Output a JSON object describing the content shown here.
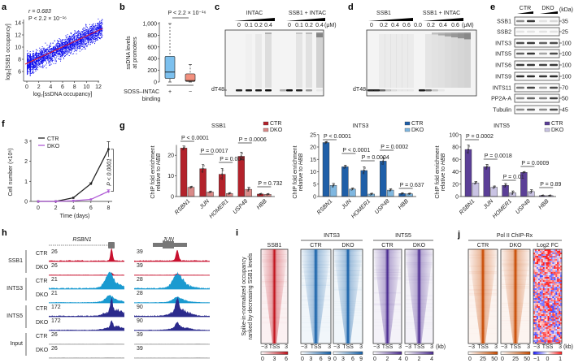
{
  "panel_labels": {
    "a": "a",
    "b": "b",
    "c": "c",
    "d": "d",
    "e": "e",
    "f": "f",
    "g": "g",
    "h": "h",
    "i": "i",
    "j": "j"
  },
  "panel_a": {
    "r": "r = 0.683",
    "p": "P < 2.2 × 10⁻¹⁶",
    "ylabel": "log₂[SSB1 occupancy]",
    "xlabel": "log₂[ssDNA occupancy]",
    "yticks": [
      6,
      8,
      10,
      12,
      14
    ],
    "xticks": [
      0,
      2,
      4,
      6,
      8,
      10,
      12
    ],
    "fit": {
      "intercept": 7.2,
      "slope": 0.46
    },
    "point_color": "#1010ee",
    "fit_color": "#e8202a"
  },
  "panel_b": {
    "p": "P < 2.2 × 10⁻¹⁶",
    "ylabel": [
      "ssDNA levels",
      "at promoters"
    ],
    "yticks": [
      0,
      200,
      400,
      600,
      800,
      1000
    ],
    "xlabel": [
      "SOSS–INTAC",
      "binding"
    ],
    "groups": [
      {
        "label": "+",
        "lo": 0,
        "q1": 60,
        "median": 170,
        "q3": 440,
        "hi": 1000,
        "color": "#7cc0ee"
      },
      {
        "label": "−",
        "lo": 0,
        "q1": 10,
        "median": 25,
        "q3": 140,
        "hi": 300,
        "color": "#f2907e"
      }
    ]
  },
  "panel_c": {
    "group1": "INTAC",
    "doses1": [
      "0",
      "0.1",
      "0.2",
      "0.4"
    ],
    "group2": "SSB1 + INTAC",
    "doses2": [
      "0",
      "0.1",
      "0.2",
      "0.4"
    ],
    "unit": "(μM)",
    "probe": "dT48"
  },
  "panel_d": {
    "group1": "SSB1",
    "doses1": [
      "0",
      "0.2",
      "0.4",
      "0.6"
    ],
    "group2": "SSB1 + INTAC",
    "doses2": [
      "0.0",
      "0.2",
      "0.4",
      "0.6"
    ],
    "unit": "(μM)",
    "probe": "dT48"
  },
  "panel_e": {
    "groups": [
      "CTR",
      "DKO"
    ],
    "unit": "(kDa)",
    "rows": [
      {
        "name": "SSB1",
        "kda": "35",
        "levels": [
          0.5,
          0.9,
          0.1,
          0.15
        ]
      },
      {
        "name": "SSB2",
        "kda": "25",
        "levels": [
          0.1,
          0.1,
          0.1,
          0.1
        ]
      },
      {
        "name": "INTS3",
        "kda": "100",
        "levels": [
          0.8,
          0.9,
          0.7,
          0.8
        ]
      },
      {
        "name": "INTS5",
        "kda": "100",
        "levels": [
          0.7,
          0.9,
          0.4,
          0.8
        ]
      },
      {
        "name": "INTS6",
        "kda": "100",
        "levels": [
          0.9,
          0.9,
          0.85,
          0.9
        ]
      },
      {
        "name": "INTS9",
        "kda": "100",
        "levels": [
          0.95,
          0.95,
          0.9,
          0.95
        ]
      },
      {
        "name": "INTS11",
        "kda": "70",
        "levels": [
          0.6,
          0.85,
          0.4,
          0.8
        ]
      },
      {
        "name": "PP2A-A",
        "kda": "50",
        "levels": [
          0.5,
          0.7,
          0.55,
          0.85
        ]
      },
      {
        "name": "Tubulin",
        "kda": "45",
        "levels": [
          0.5,
          0.7,
          0.5,
          0.8
        ]
      }
    ]
  },
  "chart_data": [
    {
      "id": "f",
      "type": "line",
      "xlabel": "Time (days)",
      "ylabel": "Cell number (×10⁶)",
      "x": [
        0,
        2,
        4,
        6,
        8
      ],
      "xticks": [
        0,
        2,
        4,
        6,
        8
      ],
      "yticks": [
        0,
        1,
        2,
        3
      ],
      "ylim": [
        0,
        3
      ],
      "series": [
        {
          "name": "CTR",
          "values": [
            0,
            0,
            0.18,
            0.88,
            2.6
          ],
          "err": [
            0,
            0,
            0.02,
            0.05,
            0.38
          ],
          "color": "#222222"
        },
        {
          "name": "DKO",
          "values": [
            0,
            0,
            0.03,
            0.1,
            0.5
          ],
          "err": [
            0,
            0,
            0.01,
            0.02,
            0.08
          ],
          "color": "#b05cd6"
        }
      ],
      "annotation": "P < 0.0001"
    },
    {
      "id": "g1",
      "type": "bar",
      "title": "SSB1",
      "ylabel": [
        "ChIP fold enrichment",
        "relative to HBB"
      ],
      "categories": [
        "RSBN1",
        "JUN",
        "HOMER1",
        "USP48",
        "HBB"
      ],
      "yticks": [
        0,
        10,
        20
      ],
      "ylim": [
        0,
        25
      ],
      "series": [
        {
          "name": "CTR",
          "values": [
            23.5,
            13.5,
            10.8,
            19.5,
            1.2
          ],
          "err": [
            1.0,
            2.0,
            2.8,
            2.0,
            0.2
          ],
          "color": "#b3222b"
        },
        {
          "name": "DKO",
          "values": [
            4.5,
            2.2,
            1.5,
            3.5,
            1.1
          ],
          "err": [
            0.4,
            0.3,
            0.3,
            1.0,
            0.2
          ],
          "color": "#d98a88"
        }
      ],
      "pvalues": [
        "P < 0.0001",
        "P = 0.0017",
        "P = 0.004",
        "P = 0.0006",
        "P = 0.732"
      ]
    },
    {
      "id": "g2",
      "type": "bar",
      "title": "INTS3",
      "ylabel": [
        "ChIP fold enrichment",
        "relative to HBB"
      ],
      "categories": [
        "RSBN1",
        "JUN",
        "HOMER1",
        "USP48",
        "HBB"
      ],
      "yticks": [
        0,
        5,
        10,
        15,
        20,
        25
      ],
      "ylim": [
        0,
        25
      ],
      "series": [
        {
          "name": "CTR",
          "values": [
            21.8,
            12.0,
            10.5,
            14.3,
            1.2
          ],
          "err": [
            0.4,
            0.6,
            1.5,
            1.5,
            0.2
          ],
          "color": "#1f5fa8"
        },
        {
          "name": "DKO",
          "values": [
            4.5,
            3.0,
            1.0,
            2.6,
            1.1
          ],
          "err": [
            0.8,
            0.4,
            0.3,
            0.5,
            0.2
          ],
          "color": "#7fb7e0"
        }
      ],
      "pvalues": [
        "P < 0.0001",
        "P < 0.0001",
        "P = 0.0004",
        "P = 0.0002",
        "P = 0.637"
      ]
    },
    {
      "id": "g3",
      "type": "bar",
      "title": "INTS5",
      "ylabel": [
        "ChIP fold enrichment",
        "relative to HBB"
      ],
      "categories": [
        "RSBN1",
        "JUN",
        "HOMER1",
        "USP48",
        "HBB"
      ],
      "yticks": [
        0,
        20,
        40,
        60,
        80,
        100
      ],
      "ylim": [
        0,
        100
      ],
      "series": [
        {
          "name": "CTR",
          "values": [
            76,
            48,
            18,
            39,
            1.5
          ],
          "err": [
            7,
            4,
            3,
            1,
            0.5
          ],
          "color": "#5b3f97"
        },
        {
          "name": "DKO",
          "values": [
            22,
            15,
            6,
            8,
            1.5
          ],
          "err": [
            2,
            2,
            3,
            3,
            0.5
          ],
          "color": "#c9c3e3"
        }
      ],
      "pvalues": [
        "P = 0.0002",
        "P = 0.0018",
        "P = 0.01",
        "P = 0.0009",
        "P = 0.89"
      ]
    }
  ],
  "panel_h": {
    "genes": [
      "RSBN1",
      "JUN"
    ],
    "rows": [
      {
        "protein": "SSB1",
        "cond": "CTR",
        "scales": [
          "26",
          "39"
        ],
        "color": "#c8102e"
      },
      {
        "protein": "",
        "cond": "DKO",
        "scales": [
          "26",
          "39"
        ],
        "color": "#c8102e"
      },
      {
        "protein": "INTS3",
        "cond": "CTR",
        "scales": [
          "21",
          "28"
        ],
        "color": "#1a9ad0"
      },
      {
        "protein": "",
        "cond": "DKO",
        "scales": [
          "21",
          "28"
        ],
        "color": "#1a9ad0"
      },
      {
        "protein": "INTS5",
        "cond": "CTR",
        "scales": [
          "172",
          "90"
        ],
        "color": "#2b2a8c"
      },
      {
        "protein": "",
        "cond": "DKO",
        "scales": [
          "172",
          "90"
        ],
        "color": "#2b2a8c"
      },
      {
        "protein": "Input",
        "cond": "CTR",
        "scales": [
          "26",
          "39"
        ],
        "color": "#999999"
      },
      {
        "protein": "",
        "cond": "DKO",
        "scales": [
          "26",
          "39"
        ],
        "color": "#999999"
      }
    ]
  },
  "panel_i": {
    "ylabel": [
      "Spike-in-normalized occupancy",
      "ranked by decreasing SSB1 levels"
    ],
    "axis": [
      "−3",
      "TSS",
      "3"
    ],
    "unit": "(kb)",
    "heatmaps": [
      {
        "group": "",
        "title": "SSB1",
        "color": "#c0101a",
        "scale": [
          "0",
          "3",
          "6"
        ]
      },
      {
        "group": "INTS3",
        "title": "CTR",
        "color": "#1560a8",
        "scale": [
          "0",
          "3",
          "6",
          "9"
        ]
      },
      {
        "group": "INTS3",
        "title": "DKO",
        "color": "#1560a8",
        "scale": [
          "0",
          "3",
          "6",
          "9"
        ]
      },
      {
        "group": "INTS5",
        "title": "CTR",
        "color": "#4a2a90",
        "scale": [
          "0",
          "2",
          "4"
        ]
      },
      {
        "group": "INTS5",
        "title": "DKO",
        "color": "#4a2a90",
        "scale": [
          "0",
          "2",
          "4"
        ]
      }
    ]
  },
  "panel_j": {
    "title": "Pol II ChIP-Rx",
    "heatmaps": [
      {
        "title": "CTR",
        "color": "#c84a00",
        "scale": [
          "0",
          "25",
          "50"
        ]
      },
      {
        "title": "DKO",
        "color": "#c84a00",
        "scale": [
          "0",
          "25",
          "50"
        ]
      },
      {
        "title": "Log2 FC",
        "color": "diverging",
        "scale": [
          "−1",
          "0",
          "1"
        ]
      }
    ]
  }
}
